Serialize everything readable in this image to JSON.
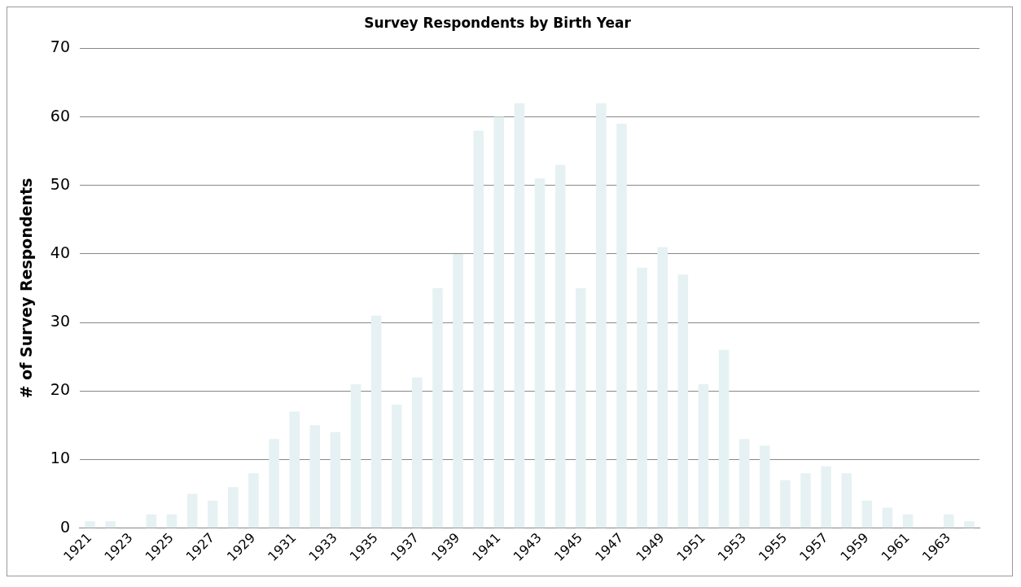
{
  "chart_data": {
    "type": "bar",
    "title": "Survey Respondents by Birth Year",
    "ylabel": "# of Survey Respondents",
    "categories": [
      "1921",
      null,
      "1923",
      null,
      "1925",
      null,
      "1927",
      null,
      "1929",
      null,
      "1931",
      null,
      "1933",
      null,
      "1935",
      null,
      "1937",
      null,
      "1939",
      null,
      "1941",
      null,
      "1943",
      null,
      "1945",
      null,
      "1947",
      null,
      "1949",
      null,
      "1951",
      null,
      "1953",
      null,
      "1955",
      null,
      "1957",
      null,
      "1959",
      null,
      "1961",
      null,
      "1963",
      null
    ],
    "values": [
      1,
      1,
      0,
      2,
      2,
      5,
      4,
      6,
      8,
      13,
      17,
      15,
      14,
      21,
      31,
      18,
      22,
      35,
      40,
      58,
      60,
      62,
      51,
      53,
      35,
      62,
      59,
      38,
      41,
      37,
      21,
      26,
      13,
      12,
      7,
      8,
      9,
      8,
      4,
      3,
      2,
      0,
      2,
      1
    ],
    "color": "#e6f1f3",
    "ylim": [
      0,
      70
    ],
    "yticks": [
      0,
      10,
      20,
      30,
      40,
      50,
      60,
      70
    ],
    "grid": "y",
    "legend": false
  }
}
